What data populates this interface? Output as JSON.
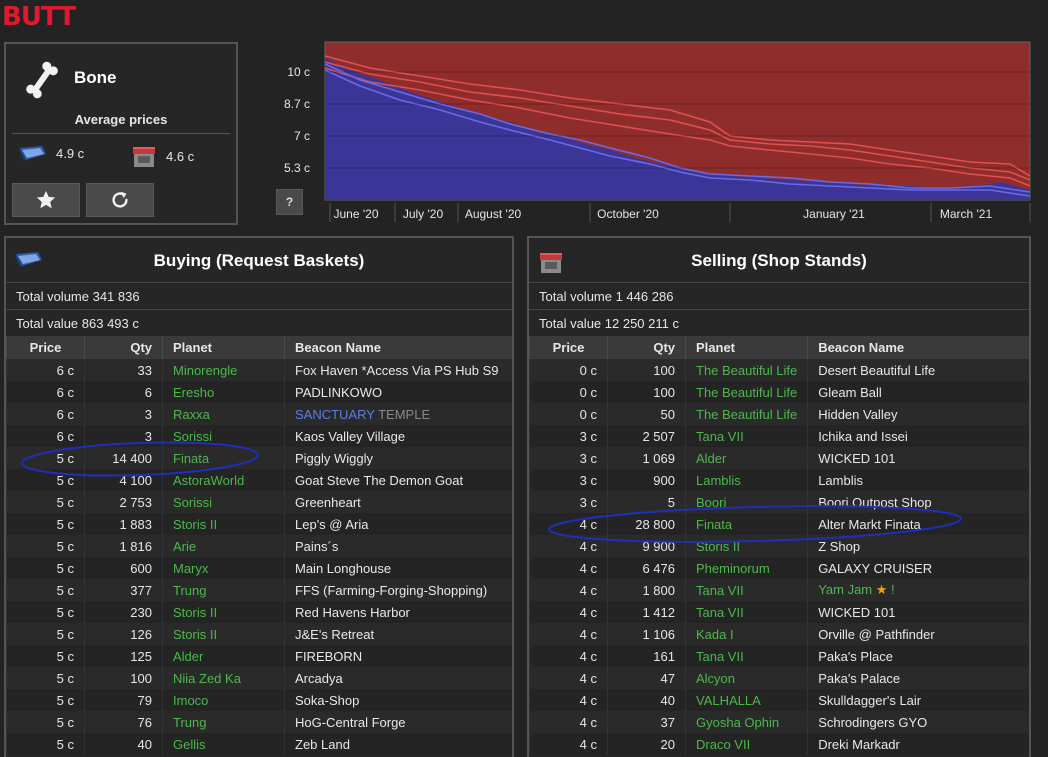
{
  "app": {
    "logo": "BUTT"
  },
  "item": {
    "name": "Bone",
    "average_label": "Average prices",
    "buy_avg": "4.9 c",
    "sell_avg": "4.6 c",
    "favorite_icon": "star-icon",
    "refresh_icon": "refresh-icon"
  },
  "chart": {
    "help_label": "?",
    "chart_data": {
      "type": "area",
      "y_ticks": [
        "10 c",
        "8.7 c",
        "7 c",
        "5.3 c"
      ],
      "x_ticks": [
        "June '20",
        "July '20",
        "August '20",
        "October '20",
        "January '21",
        "March '21"
      ],
      "colors": {
        "sell": "#8f2c2c",
        "buy": "#3a3596",
        "sell_line": "#e05050",
        "buy_line": "#6a6ae8"
      }
    }
  },
  "buying": {
    "title": "Buying (Request Baskets)",
    "total_volume": "Total volume 341 836",
    "total_value": "Total value 863 493 c",
    "columns": [
      "Price",
      "Qty",
      "Planet",
      "Beacon Name"
    ],
    "rows": [
      [
        "6 c",
        "33",
        "Minorengle",
        "Fox Haven *Access Via PS Hub S9"
      ],
      [
        "6 c",
        "6",
        "Eresho",
        "PADLINKOWO"
      ],
      [
        "6 c",
        "3",
        "Raxxa",
        "SANCTUARY TEMPLE"
      ],
      [
        "6 c",
        "3",
        "Sorissi",
        "Kaos Valley Village"
      ],
      [
        "5 c",
        "14 400",
        "Finata",
        "Piggly Wiggly"
      ],
      [
        "5 c",
        "4 100",
        "AstoraWorld",
        "Goat Steve The Demon Goat"
      ],
      [
        "5 c",
        "2 753",
        "Sorissi",
        "Greenheart"
      ],
      [
        "5 c",
        "1 883",
        "Storis II",
        "Lep's @ Aria"
      ],
      [
        "5 c",
        "1 816",
        "Arie",
        "Pains´s"
      ],
      [
        "5 c",
        "600",
        "Maryx",
        "Main Longhouse"
      ],
      [
        "5 c",
        "377",
        "Trung",
        "FFS (Farming-Forging-Shopping)"
      ],
      [
        "5 c",
        "230",
        "Storis II",
        "Red Havens Harbor"
      ],
      [
        "5 c",
        "126",
        "Storis II",
        "J&E's Retreat"
      ],
      [
        "5 c",
        "125",
        "Alder",
        "FIREBORN"
      ],
      [
        "5 c",
        "100",
        "Niia Zed Ka",
        "Arcadya"
      ],
      [
        "5 c",
        "79",
        "Imoco",
        "Soka-Shop"
      ],
      [
        "5 c",
        "76",
        "Trung",
        "HoG-Central Forge"
      ],
      [
        "5 c",
        "40",
        "Gellis",
        "Zeb Land"
      ]
    ]
  },
  "selling": {
    "title": "Selling (Shop Stands)",
    "total_volume": "Total volume 1 446 286",
    "total_value": "Total value 12 250 211 c",
    "columns": [
      "Price",
      "Qty",
      "Planet",
      "Beacon Name"
    ],
    "rows": [
      [
        "0 c",
        "100",
        "The Beautiful Life",
        "Desert Beautiful Life"
      ],
      [
        "0 c",
        "100",
        "The Beautiful Life",
        "Gleam Ball"
      ],
      [
        "0 c",
        "50",
        "The Beautiful Life",
        "Hidden Valley"
      ],
      [
        "3 c",
        "2 507",
        "Tana VII",
        "Ichika and Issei"
      ],
      [
        "3 c",
        "1 069",
        "Alder",
        "WICKED 101"
      ],
      [
        "3 c",
        "900",
        "Lamblis",
        "Lamblis"
      ],
      [
        "3 c",
        "5",
        "Boori",
        "Boori Outpost Shop"
      ],
      [
        "4 c",
        "28 800",
        "Finata",
        "Alter Markt Finata"
      ],
      [
        "4 c",
        "9 900",
        "Storis II",
        "Z Shop"
      ],
      [
        "4 c",
        "6 476",
        "Pheminorum",
        "GALAXY CRUISER"
      ],
      [
        "4 c",
        "1 800",
        "Tana VII",
        "Yam Jam ★ !"
      ],
      [
        "4 c",
        "1 412",
        "Tana VII",
        "WICKED 101"
      ],
      [
        "4 c",
        "1 106",
        "Kada I",
        "Orville @ Pathfinder"
      ],
      [
        "4 c",
        "161",
        "Tana VII",
        "Paka's Place"
      ],
      [
        "4 c",
        "47",
        "Alcyon",
        "Paka's Palace"
      ],
      [
        "4 c",
        "40",
        "VALHALLA",
        "Skulldagger's Lair"
      ],
      [
        "4 c",
        "37",
        "Gyosha Ophin",
        "Schrodingers GYO"
      ],
      [
        "4 c",
        "20",
        "Draco VII",
        "Dreki Markadr"
      ]
    ]
  }
}
